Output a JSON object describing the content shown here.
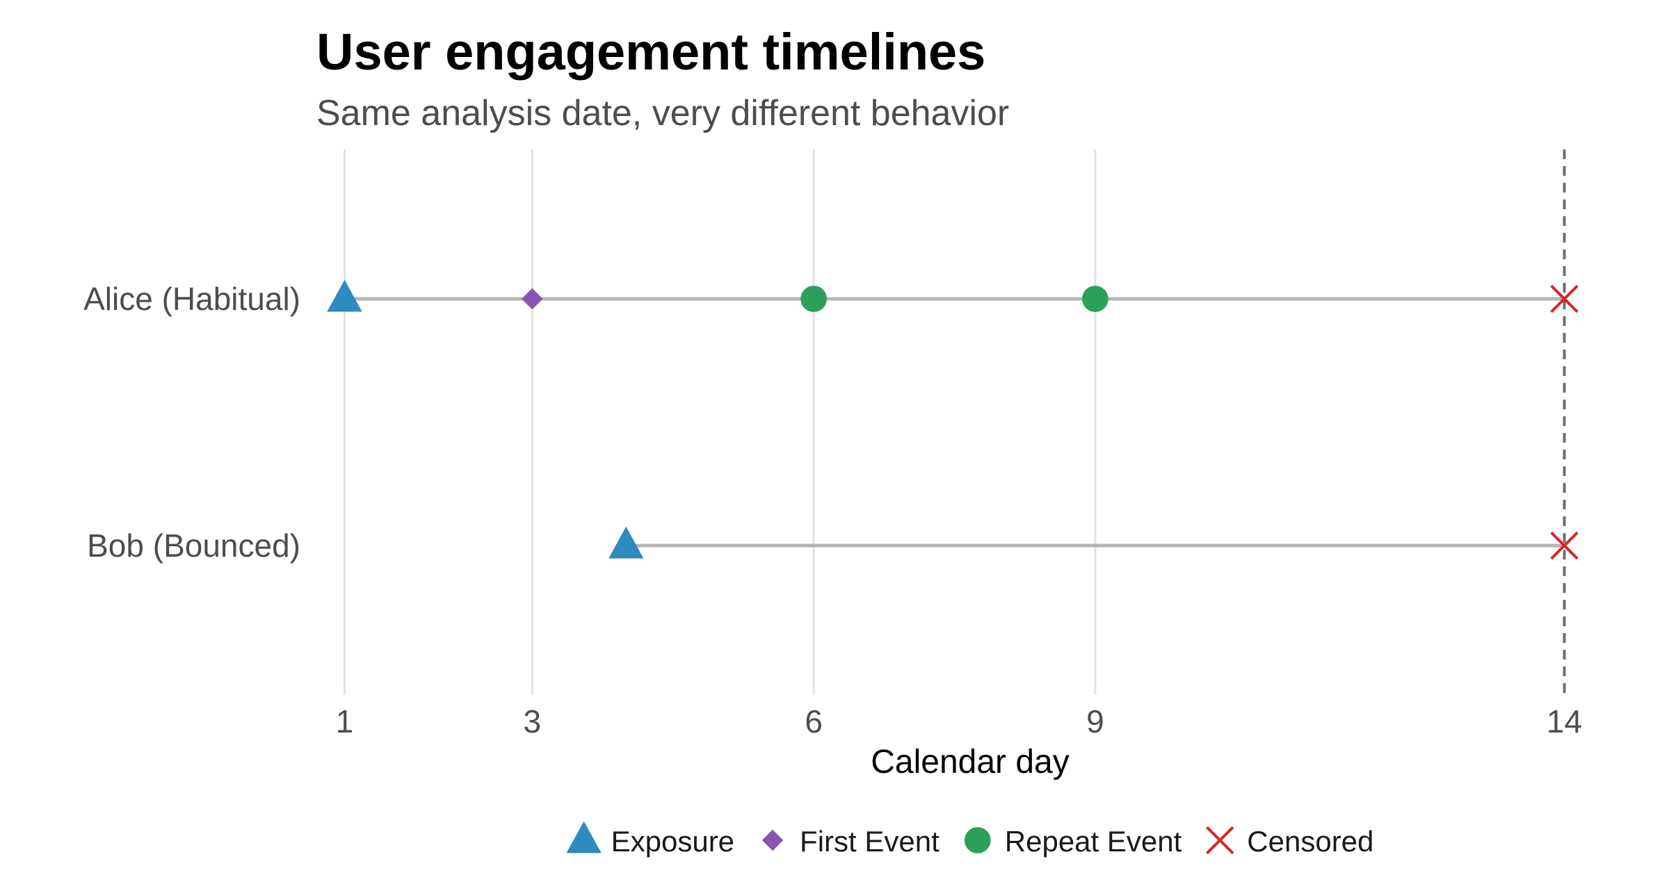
{
  "chart_data": {
    "type": "scatter",
    "title": "User engagement timelines",
    "subtitle": "Same analysis date, very different behavior",
    "xlabel": "Calendar day",
    "ylabel": "",
    "xlim": [
      0.7,
      14.3
    ],
    "x_ticks": [
      1,
      3,
      6,
      9,
      14
    ],
    "grid": true,
    "analysis_date": 14,
    "legend_position": "bottom",
    "users": [
      {
        "label": "Alice (Habitual)",
        "start": 1,
        "end": 14,
        "events": [
          {
            "day": 1,
            "type": "Exposure"
          },
          {
            "day": 3,
            "type": "First Event"
          },
          {
            "day": 6,
            "type": "Repeat Event"
          },
          {
            "day": 9,
            "type": "Repeat Event"
          },
          {
            "day": 14,
            "type": "Censored"
          }
        ]
      },
      {
        "label": "Bob (Bounced)",
        "start": 4,
        "end": 14,
        "events": [
          {
            "day": 4,
            "type": "Exposure"
          },
          {
            "day": 14,
            "type": "Censored"
          }
        ]
      }
    ],
    "legend": [
      {
        "label": "Exposure",
        "shape": "triangle",
        "color": "#2E8BC0"
      },
      {
        "label": "First Event",
        "shape": "diamond",
        "color": "#8A55B0"
      },
      {
        "label": "Repeat Event",
        "shape": "circle",
        "color": "#2CA05A"
      },
      {
        "label": "Censored",
        "shape": "cross",
        "color": "#D62728"
      }
    ],
    "colors": {
      "segment": "#b5b5b5",
      "grid": "#e3e3e3",
      "reference_line": "#6e6e6e"
    }
  }
}
